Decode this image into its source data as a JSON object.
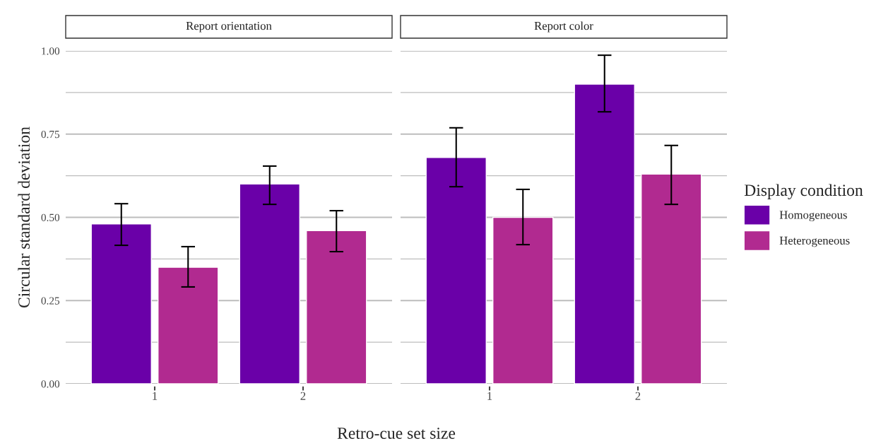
{
  "chart_data": [
    {
      "type": "bar",
      "title": "Report orientation",
      "ylabel": "Circular standard deviation",
      "xlabel": "Retro-cue set size",
      "categories": [
        "1",
        "2"
      ],
      "series": [
        {
          "color": "#6a00a8",
          "values": [
            0.48,
            0.6
          ],
          "errors": [
            [
              0.416,
              0.541
            ],
            [
              0.539,
              0.654
            ]
          ]
        },
        {
          "color": "#b12a90",
          "values": [
            0.35,
            0.46
          ],
          "errors": [
            [
              0.291,
              0.412
            ],
            [
              0.397,
              0.52
            ]
          ]
        }
      ],
      "ylim": [
        0,
        1.0
      ],
      "yticks": [
        {
          "value": 0,
          "label": "0.00"
        },
        {
          "value": 0.125,
          "label": null
        },
        {
          "value": 0.25,
          "label": "0.25"
        },
        {
          "value": 0.375,
          "label": null
        },
        {
          "value": 0.5,
          "label": "0.50"
        },
        {
          "value": 0.625,
          "label": null
        },
        {
          "value": 0.75,
          "label": "0.75"
        },
        {
          "value": 0.875,
          "label": null
        },
        {
          "value": 1.0,
          "label": "1.00"
        }
      ],
      "grid": "y"
    },
    {
      "type": "bar",
      "title": "Report color",
      "categories": [
        "1",
        "2"
      ],
      "series": [
        {
          "name": "Homogeneous",
          "color": "#6a00a8",
          "values": [
            0.68,
            0.9
          ],
          "errors": [
            [
              0.592,
              0.769
            ],
            [
              0.817,
              0.987
            ]
          ]
        },
        {
          "name": "Heterogeneous",
          "color": "#b12a90",
          "values": [
            0.5,
            0.63
          ],
          "errors": [
            [
              0.418,
              0.584
            ],
            [
              0.539,
              0.716
            ]
          ]
        }
      ],
      "ylim": [
        0,
        1.0
      ],
      "yticks": [
        {
          "value": 0,
          "label": null
        },
        {
          "value": 0.125,
          "label": null
        },
        {
          "value": 0.25,
          "label": null
        },
        {
          "value": 0.375,
          "label": null
        },
        {
          "value": 0.5,
          "label": null
        },
        {
          "value": 0.625,
          "label": null
        },
        {
          "value": 0.75,
          "label": null
        },
        {
          "value": 0.875,
          "label": null
        },
        {
          "value": 1.0,
          "label": null
        }
      ],
      "grid": "y",
      "tick_labels": "x",
      "legend": "right",
      "legend_title": "Display condition"
    }
  ]
}
